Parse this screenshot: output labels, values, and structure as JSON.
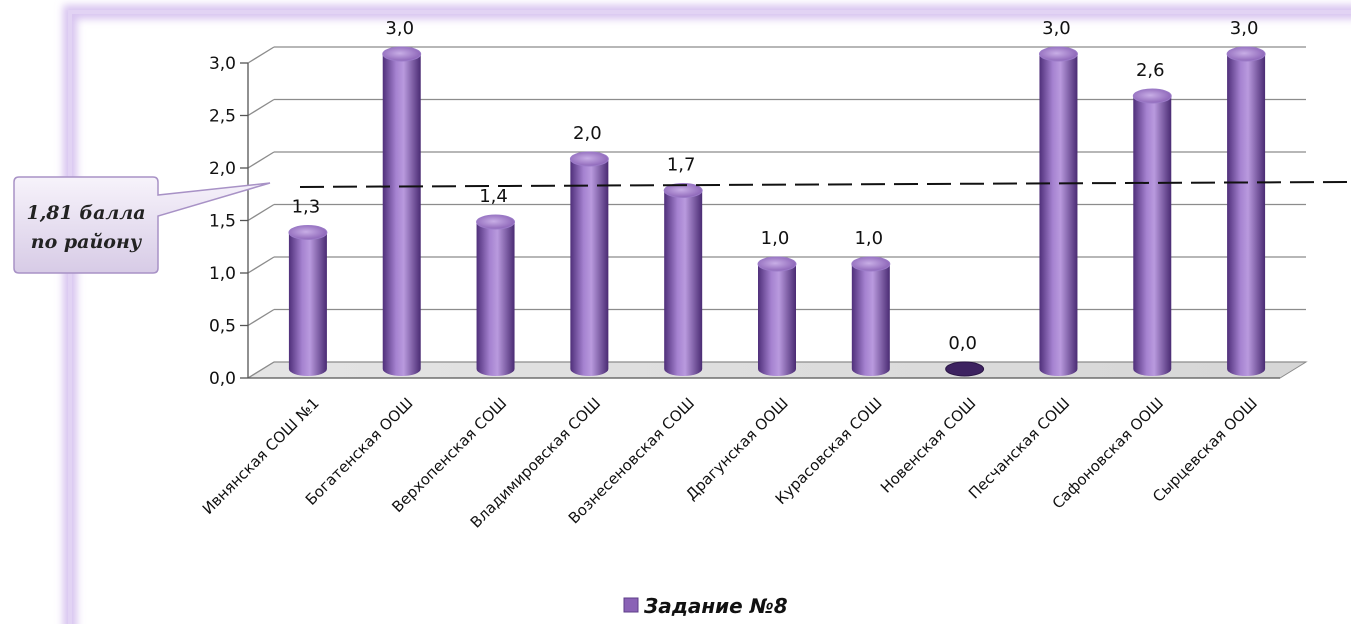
{
  "chart_data": {
    "type": "bar",
    "categories": [
      "Ивнянская СОШ №1",
      "Богатенская ООШ",
      "Верхопенская СОШ",
      "Владимировская СОШ",
      "Вознесеновская СОШ",
      "Драгунская ООШ",
      "Курасовская СОШ",
      "Новенская СОШ",
      "Песчанская СОШ",
      "Сафоновская ООШ",
      "Сырцевская ООШ"
    ],
    "series": [
      {
        "name": "Задание №8",
        "values": [
          1.3,
          3.0,
          1.4,
          2.0,
          1.7,
          1.0,
          1.0,
          0.0,
          3.0,
          2.6,
          3.0
        ],
        "labels": [
          "1,3",
          "3,0",
          "1,4",
          "2,0",
          "1,7",
          "1,0",
          "1,0",
          "0,0",
          "3,0",
          "2,6",
          "3,0"
        ]
      }
    ],
    "ylim": [
      0,
      3
    ],
    "yticks": [
      0,
      0.5,
      1,
      1.5,
      2,
      2.5,
      3
    ],
    "ytick_labels": [
      "0,0",
      "0,5",
      "1,0",
      "1,5",
      "2,0",
      "2,5",
      "3,0"
    ],
    "grid": true,
    "legend_position": "bottom",
    "reference_line": {
      "value": 1.81,
      "label_line1": "1,81 балла",
      "label_line2": "по району"
    },
    "colors": {
      "bar": "#8a62b6",
      "bar_dark": "#4f2f7a",
      "bar_light": "#c8aee6",
      "frame": "#d8c4f0",
      "grid": "#8c8c8c"
    }
  }
}
